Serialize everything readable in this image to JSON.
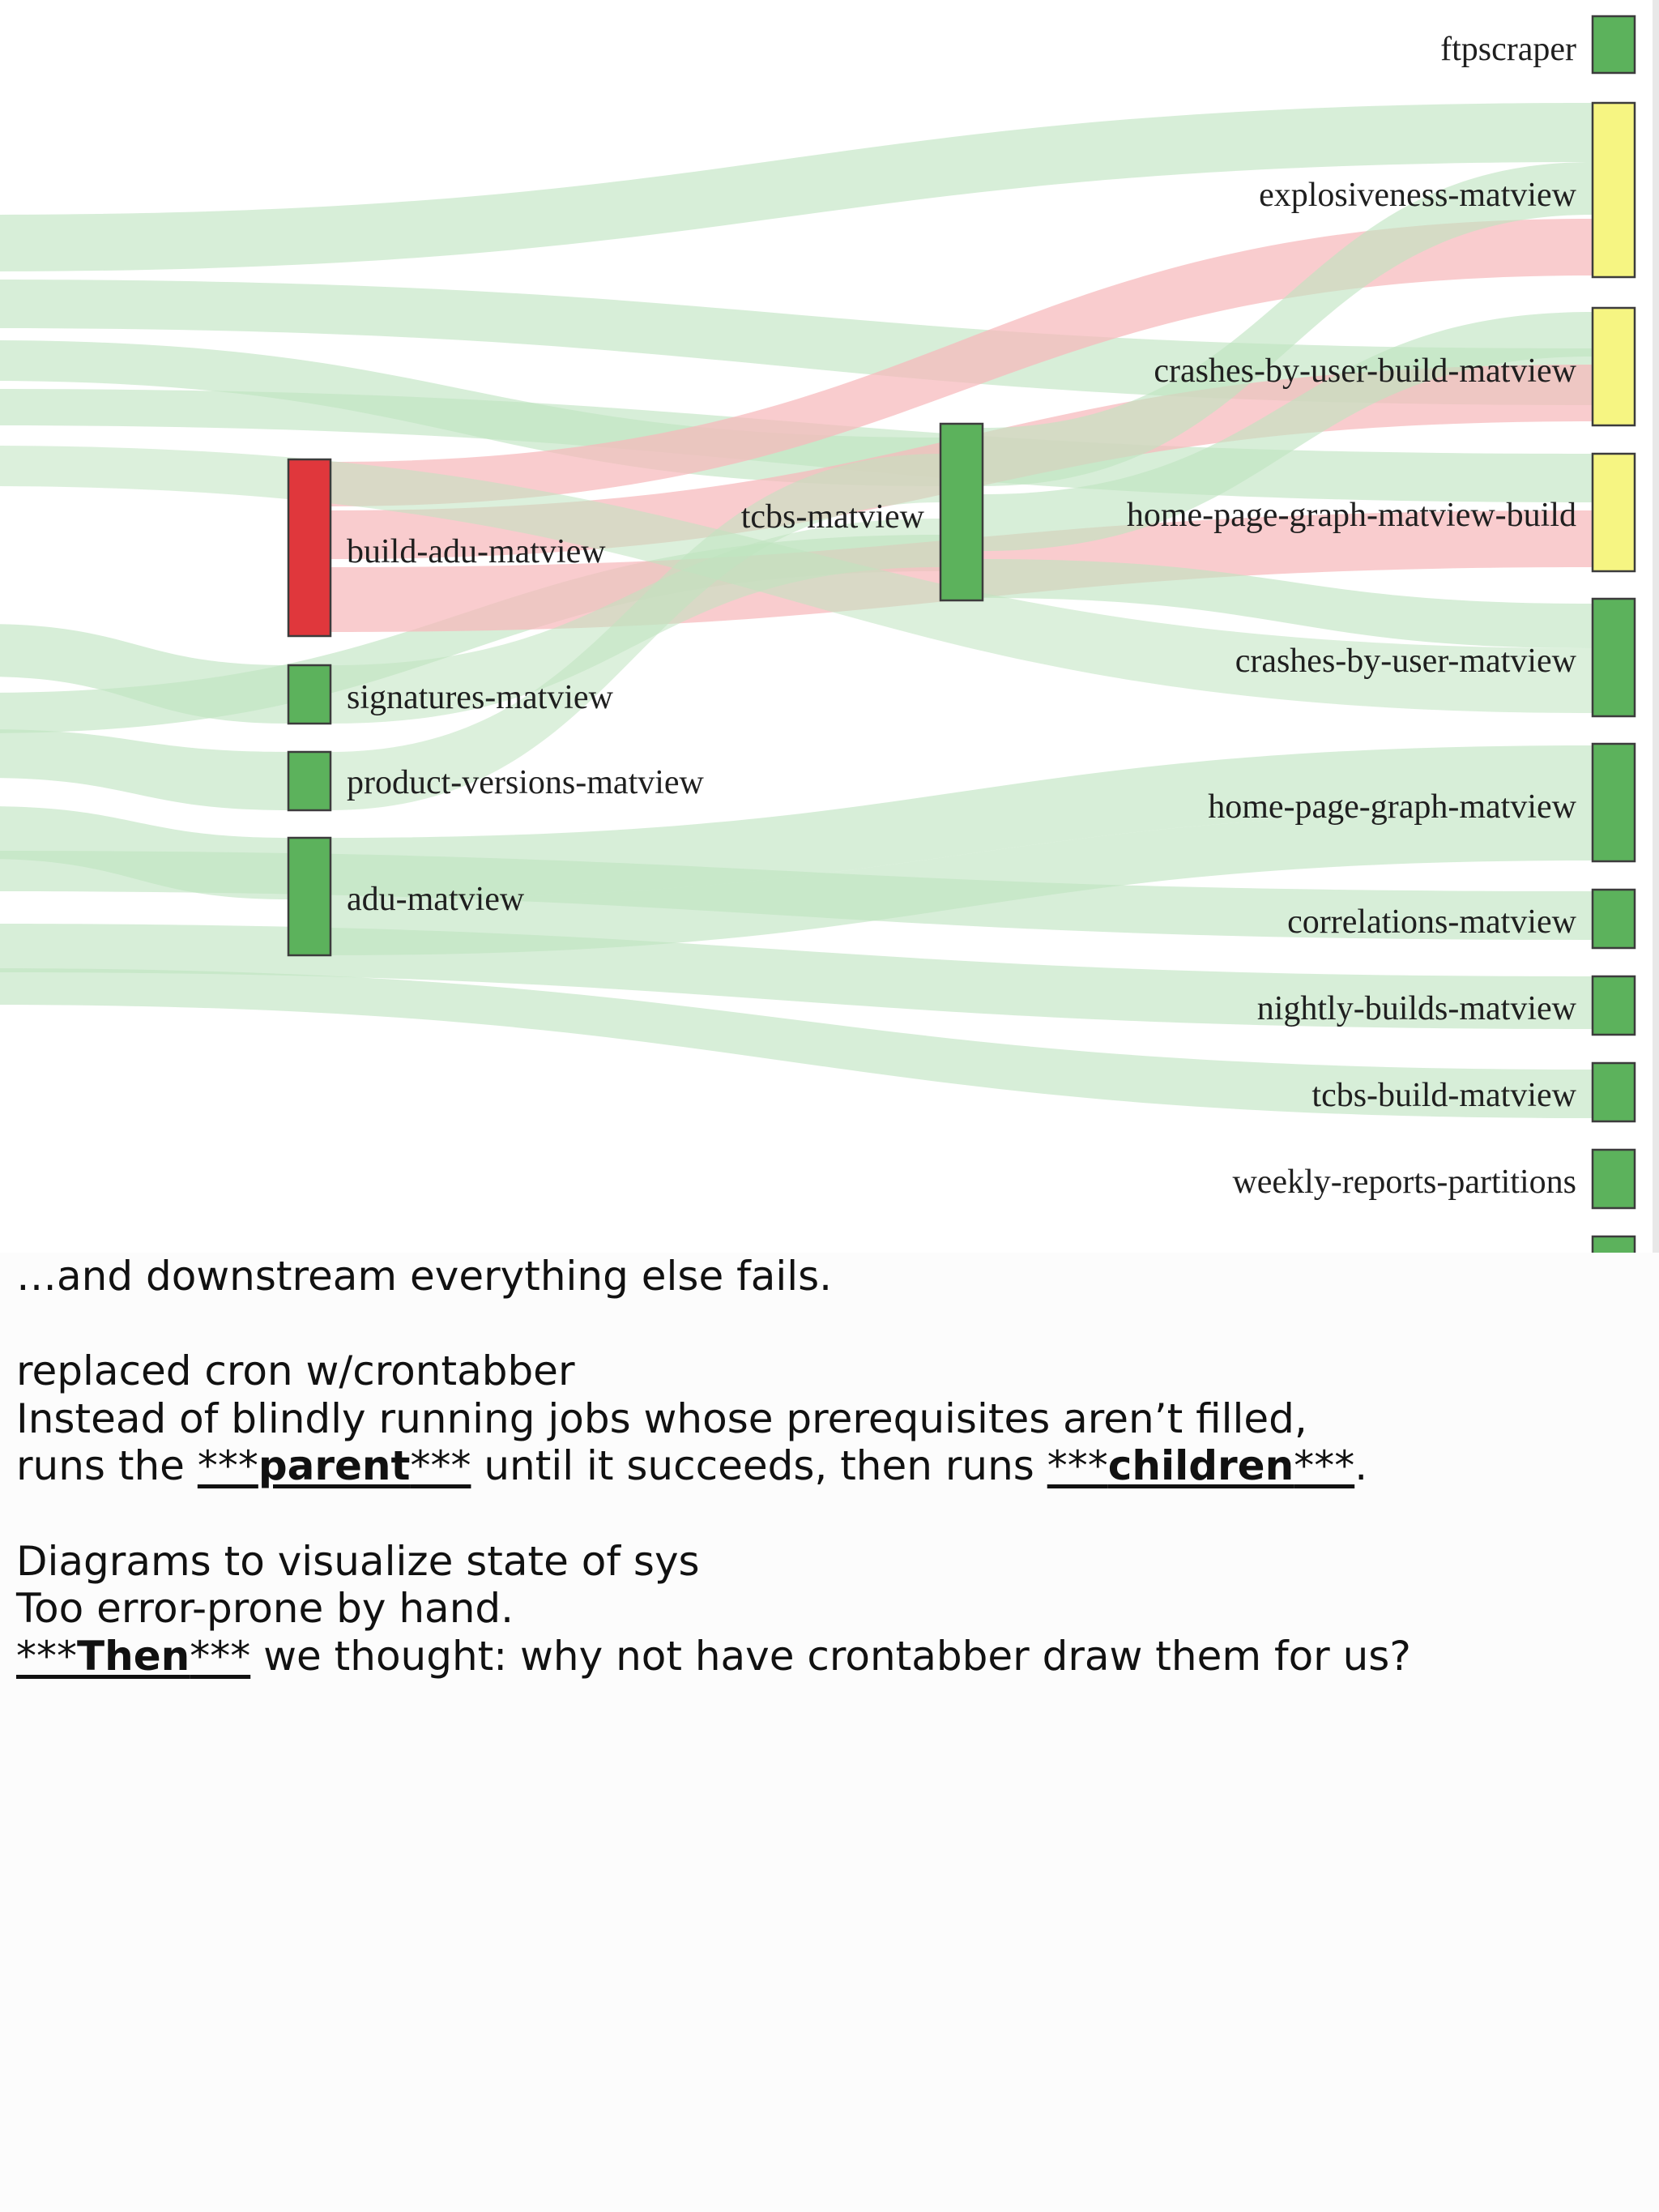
{
  "diagram": {
    "colors": {
      "success": "#5cb25c",
      "failure": "#e0373c",
      "warning": "#f6f582",
      "link_ok": "#bfe3c0",
      "link_fail": "#f6b8bb"
    },
    "nodes": [
      {
        "id": "ftpscraper",
        "label": "ftpscraper",
        "status": "success"
      },
      {
        "id": "explosiveness-matview",
        "label": "explosiveness-matview",
        "status": "warning"
      },
      {
        "id": "crashes-by-user-build-matview",
        "label": "crashes-by-user-build-matview",
        "status": "warning"
      },
      {
        "id": "home-page-graph-matview-build",
        "label": "home-page-graph-matview-build",
        "status": "warning"
      },
      {
        "id": "crashes-by-user-matview",
        "label": "crashes-by-user-matview",
        "status": "success"
      },
      {
        "id": "home-page-graph-matview",
        "label": "home-page-graph-matview",
        "status": "success"
      },
      {
        "id": "correlations-matview",
        "label": "correlations-matview",
        "status": "success"
      },
      {
        "id": "nightly-builds-matview",
        "label": "nightly-builds-matview",
        "status": "success"
      },
      {
        "id": "tcbs-build-matview",
        "label": "tcbs-build-matview",
        "status": "success"
      },
      {
        "id": "weekly-reports-partitions",
        "label": "weekly-reports-partitions",
        "status": "success"
      },
      {
        "id": "partial-node",
        "label": "",
        "status": "success"
      },
      {
        "id": "tcbs-matview",
        "label": "tcbs-matview",
        "status": "success"
      },
      {
        "id": "build-adu-matview",
        "label": "build-adu-matview",
        "status": "failure"
      },
      {
        "id": "signatures-matview",
        "label": "signatures-matview",
        "status": "success"
      },
      {
        "id": "product-versions-matview",
        "label": "product-versions-matview",
        "status": "success"
      },
      {
        "id": "adu-matview",
        "label": "adu-matview",
        "status": "success"
      }
    ],
    "links": [
      {
        "source": "build-adu-matview",
        "target": "explosiveness-matview",
        "status": "failure"
      },
      {
        "source": "build-adu-matview",
        "target": "crashes-by-user-build-matview",
        "status": "failure"
      },
      {
        "source": "build-adu-matview",
        "target": "home-page-graph-matview-build",
        "status": "failure"
      },
      {
        "source": "tcbs-matview",
        "target": "explosiveness-matview",
        "status": "success"
      },
      {
        "source": "tcbs-matview",
        "target": "crashes-by-user-build-matview",
        "status": "success"
      },
      {
        "source": "signatures-matview",
        "target": "tcbs-matview",
        "status": "success"
      },
      {
        "source": "product-versions-matview",
        "target": "tcbs-matview",
        "status": "success"
      },
      {
        "source": "adu-matview",
        "target": "home-page-graph-matview",
        "status": "success"
      }
    ]
  },
  "notes": {
    "line1": "…and downstream everything else fails.",
    "line2": "replaced cron w/crontabber",
    "line3": "Instead of blindly running jobs whose prerequisites aren’t filled,",
    "line4_pre": "runs the ",
    "line4_emph1": "parent",
    "line4_mid": " until it succeeds, then runs ",
    "line4_emph2": "children",
    "line4_post": ".",
    "line5": "Diagrams to visualize state of sys",
    "line6": "Too error-prone by hand.",
    "line7_emph": "Then",
    "line7_post": " we thought: why not have crontabber draw them for us?",
    "stars": "***"
  }
}
